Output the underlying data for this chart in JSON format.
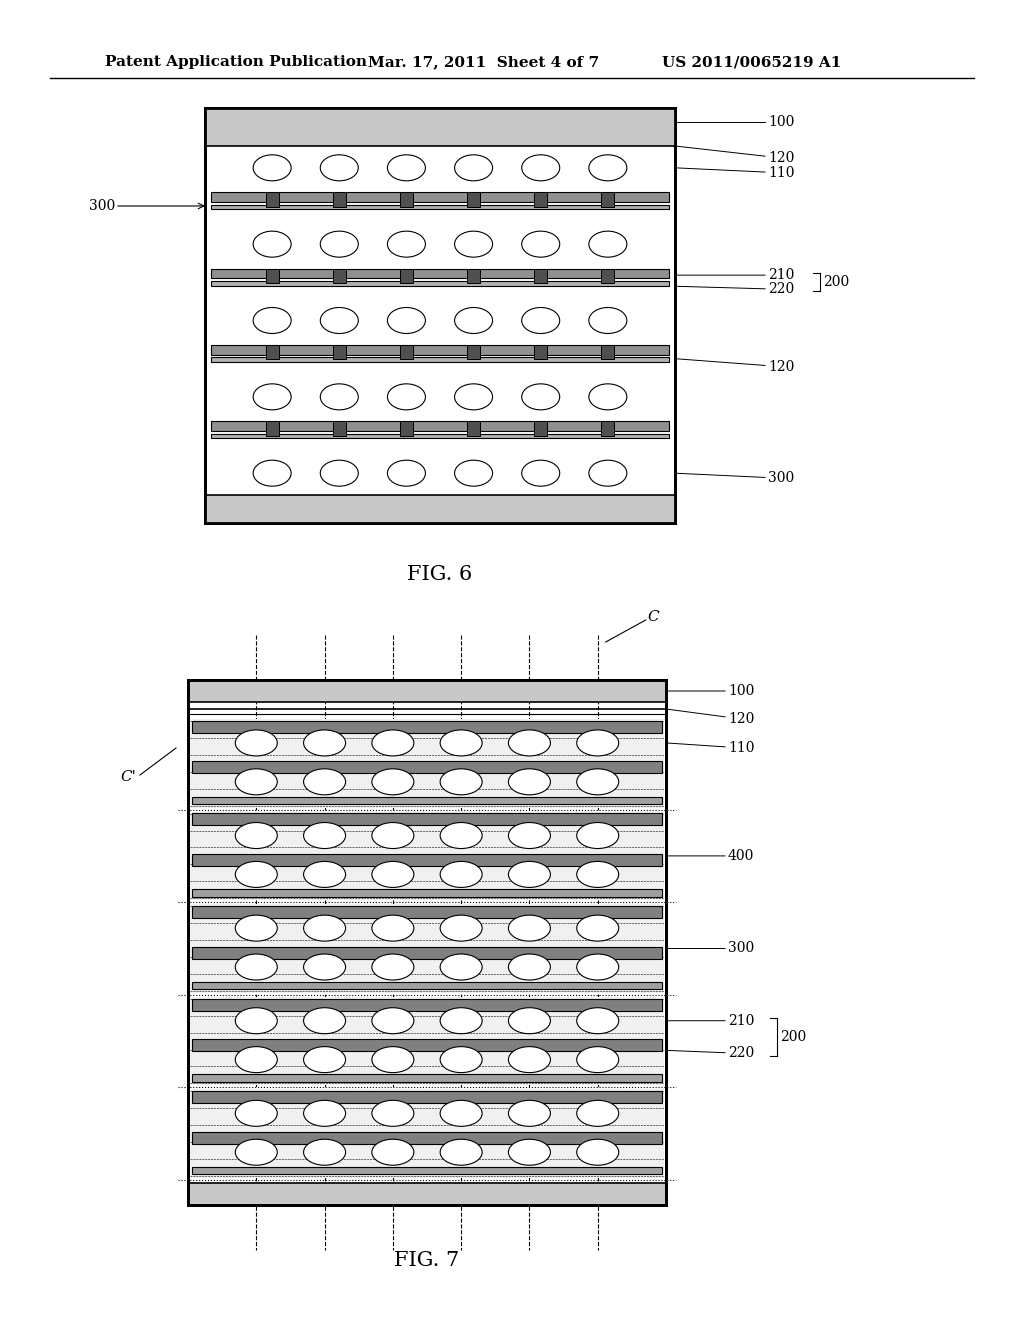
{
  "bg_color": "#ffffff",
  "header_text": "Patent Application Publication",
  "header_date": "Mar. 17, 2011  Sheet 4 of 7",
  "header_patent": "US 2011/0065219 A1",
  "fig6_label": "FIG. 6",
  "fig7_label": "FIG. 7"
}
